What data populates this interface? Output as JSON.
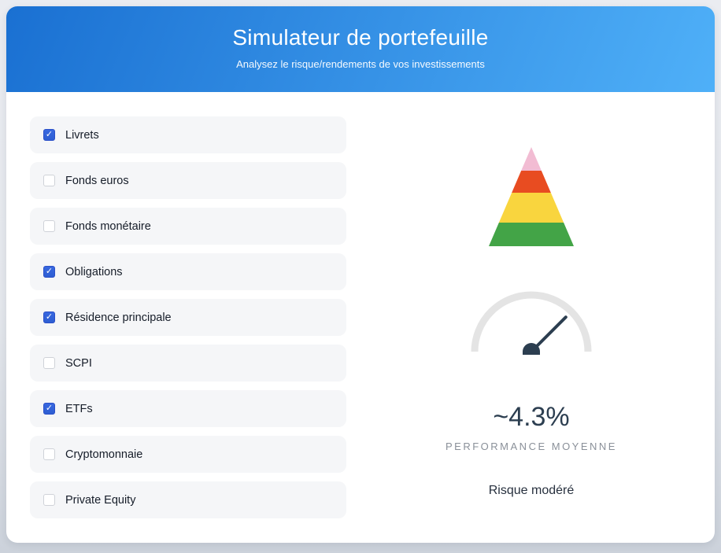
{
  "header": {
    "title": "Simulateur de portefeuille",
    "subtitle": "Analysez le risque/rendements de vos investissements"
  },
  "assets": [
    {
      "label": "Livrets",
      "checked": true
    },
    {
      "label": "Fonds euros",
      "checked": false
    },
    {
      "label": "Fonds monétaire",
      "checked": false
    },
    {
      "label": "Obligations",
      "checked": true
    },
    {
      "label": "Résidence principale",
      "checked": true
    },
    {
      "label": "SCPI",
      "checked": false
    },
    {
      "label": "ETFs",
      "checked": true
    },
    {
      "label": "Cryptomonnaie",
      "checked": false
    },
    {
      "label": "Private Equity",
      "checked": false
    }
  ],
  "results": {
    "performance_value": "~4.3%",
    "performance_label": "PERFORMANCE MOYENNE",
    "risk_label": "Risque modéré"
  },
  "pyramid": {
    "band_colors": [
      "#f2bcd3",
      "#e84c21",
      "#f9d53e",
      "#43a447"
    ]
  },
  "gauge": {
    "needle_angle_deg": 45,
    "needle_length": 62
  },
  "colors": {
    "header_gradient_start": "#1a70d2",
    "header_gradient_end": "#4fb0f8",
    "checkbox_accent": "#2e5ed3",
    "value_text": "#2c3e50",
    "muted_text": "#8a9099",
    "gauge_arc": "#e4e4e4",
    "gauge_needle": "#2c3e50"
  }
}
